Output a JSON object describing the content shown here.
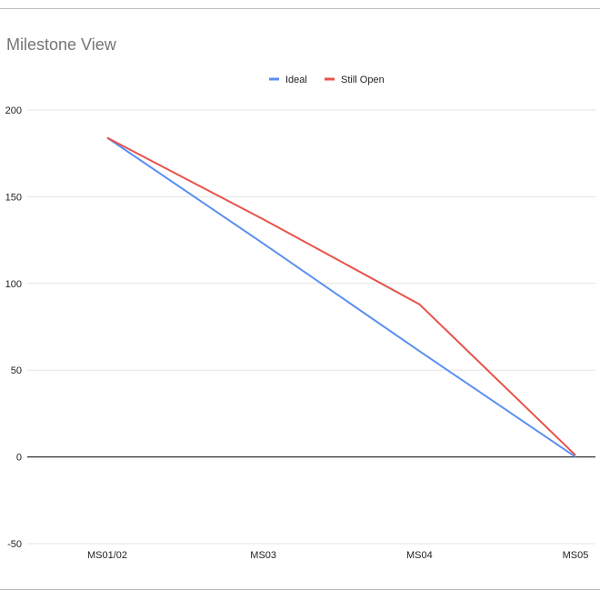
{
  "chart_data": {
    "type": "line",
    "title": "Milestone View",
    "categories": [
      "MS01/02",
      "MS03",
      "MS04",
      "MS05"
    ],
    "series": [
      {
        "name": "Ideal",
        "values": [
          184,
          123,
          61,
          0
        ],
        "color": "#5b8ff0"
      },
      {
        "name": "Still Open",
        "values": [
          184,
          137,
          88,
          1
        ],
        "color": "#e8534a"
      }
    ],
    "ylim": [
      -50,
      200
    ],
    "yticks": [
      "200",
      "150",
      "100",
      "50",
      "0",
      "-50"
    ],
    "ytick_values": [
      200,
      150,
      100,
      50,
      0,
      -50
    ],
    "grid": true,
    "legend_position": "top",
    "xlabel": "",
    "ylabel": ""
  }
}
